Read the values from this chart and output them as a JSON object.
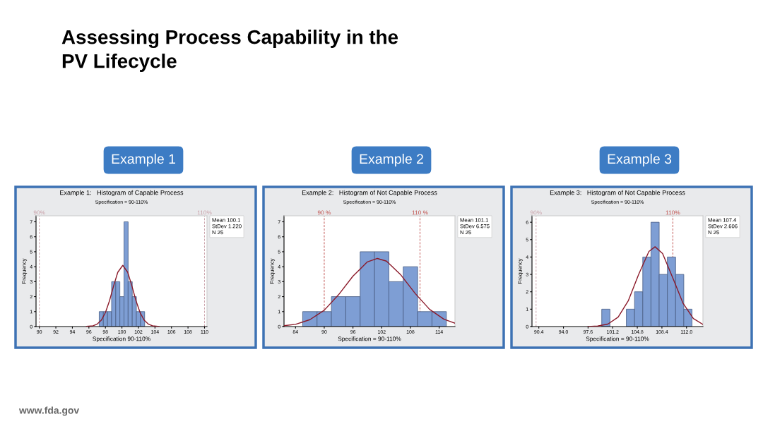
{
  "chart_data": [
    {
      "type": "histogram",
      "title": "Example 1:   Histogram of Capable Process",
      "subtitle": "Specification = 90-110%",
      "xlabel": "Specification 90-110%",
      "ylabel": "Frequency",
      "color": "#7e9ed4",
      "bins": [
        97.25,
        97.75,
        98.25,
        98.75,
        99.25,
        99.75,
        100.25,
        100.75,
        101.25,
        101.75,
        102.25,
        102.75
      ],
      "values": [
        1,
        1,
        1,
        3,
        3,
        2,
        7,
        3,
        2,
        1,
        1
      ],
      "series": [
        {
          "type": "line",
          "color": "#8b1a2a",
          "x": [
            95.7,
            96.5,
            97,
            97.5,
            98,
            98.5,
            99,
            99.5,
            100.1,
            100.7,
            101.2,
            101.7,
            102.2,
            102.7,
            103.2,
            103.7,
            104.5
          ],
          "values": [
            0.01,
            0.05,
            0.16,
            0.42,
            0.93,
            1.73,
            2.73,
            3.63,
            4.09,
            3.63,
            2.73,
            1.73,
            0.93,
            0.42,
            0.16,
            0.05,
            0.01
          ]
        }
      ],
      "xlim": [
        89.6,
        110.3
      ],
      "ylim": [
        0,
        7.4
      ],
      "xticks": [
        90,
        92,
        94,
        96,
        98,
        100,
        102,
        104,
        106,
        108,
        110
      ],
      "yticks": [
        0,
        1,
        2,
        3,
        4,
        5,
        6,
        7
      ],
      "ref_lines": [
        {
          "axis": "x",
          "value": 90,
          "label": "90%",
          "color": "#c9a0a8",
          "line_style": "dashed"
        },
        {
          "axis": "x",
          "value": 110,
          "label": "110%",
          "color": "#c9a0a8",
          "line_style": "dashed"
        }
      ],
      "annotations": [
        "Example 1",
        "Mean 100.1\nStDev 1.220\nN 25",
        "Assessing Process Capability in the\nPV Lifecycle",
        "www.fda.gov"
      ],
      "grid": false,
      "legend": false
    },
    {
      "type": "histogram",
      "title": "Example 2:   Histogram of Not Capable Process",
      "subtitle": "Specification = 90-110%",
      "xlabel": "Specification = 90-110%",
      "ylabel": "Frequency",
      "color": "#7e9ed4",
      "bins": [
        85.5,
        88.5,
        91.5,
        94.5,
        97.5,
        100.5,
        103.5,
        106.5,
        109.5,
        112.5,
        115.5
      ],
      "values": [
        1,
        1,
        2,
        2,
        5,
        5,
        3,
        4,
        1,
        1
      ],
      "series": [
        {
          "type": "line",
          "color": "#8b1a2a",
          "x": [
            81.6,
            84,
            87,
            90,
            93,
            96,
            99,
            101.1,
            103,
            106,
            109,
            112,
            115,
            117.3
          ],
          "values": [
            0.06,
            0.15,
            0.46,
            1.09,
            2.13,
            3.37,
            4.32,
            4.55,
            4.37,
            3.45,
            2.21,
            1.15,
            0.49,
            0.22
          ]
        }
      ],
      "xlim": [
        81.6,
        117.3
      ],
      "ylim": [
        0,
        7.4
      ],
      "xticks": [
        84,
        90,
        96,
        102,
        108,
        114
      ],
      "yticks": [
        0,
        1,
        2,
        3,
        4,
        5,
        6,
        7
      ],
      "ref_lines": [
        {
          "axis": "x",
          "value": 90,
          "label": "90 %",
          "color": "#c0504d",
          "line_style": "dashed"
        },
        {
          "axis": "x",
          "value": 110,
          "label": "110 %",
          "color": "#c0504d",
          "line_style": "dashed"
        }
      ],
      "annotations": [
        "Example 2",
        "Mean 101.1\nStDev 6.575\nN 25"
      ],
      "grid": false,
      "legend": false
    },
    {
      "type": "histogram",
      "title": "Example 3:   Histogram of Not Capable Process",
      "subtitle": "Specification = 90-110%",
      "xlabel": "Specification = 90-110%",
      "ylabel": "Frequency",
      "color": "#7e9ed4",
      "bins": [
        99.6,
        100.8,
        102.0,
        103.2,
        104.4,
        105.6,
        106.8,
        108.0,
        109.2,
        110.4,
        111.6,
        112.8
      ],
      "values": [
        1,
        0,
        0,
        1,
        2,
        4,
        6,
        3,
        4,
        3,
        1
      ],
      "series": [
        {
          "type": "line",
          "color": "#8b1a2a",
          "x": [
            97.6,
            99,
            100.5,
            102,
            103.5,
            105,
            106.5,
            107.4,
            108.5,
            110,
            111.5,
            113,
            114.4
          ],
          "values": [
            0,
            0.03,
            0.14,
            0.54,
            1.5,
            3.0,
            4.32,
            4.59,
            4.2,
            2.79,
            1.33,
            0.46,
            0.12
          ]
        }
      ],
      "xlim": [
        89.4,
        114.4
      ],
      "ylim": [
        0,
        6.37
      ],
      "xticks": [
        90.4,
        {
          "value": 94,
          "label": "94.0"
        },
        97.6,
        101.2,
        104.8,
        108.4,
        {
          "value": 112,
          "label": "112.0"
        }
      ],
      "yticks": [
        0,
        1,
        2,
        3,
        4,
        5,
        6
      ],
      "ref_lines": [
        {
          "axis": "x",
          "value": 90,
          "label": "90%",
          "color": "#c9a0a8",
          "line_style": "dashed"
        },
        {
          "axis": "x",
          "value": 110,
          "label": "110%",
          "color": "#c0504d",
          "line_style": "dashed"
        }
      ],
      "annotations": [
        "Example 3",
        "Mean 107.4\nStDev 2.606\nN 25"
      ],
      "grid": false,
      "legend": false
    }
  ]
}
